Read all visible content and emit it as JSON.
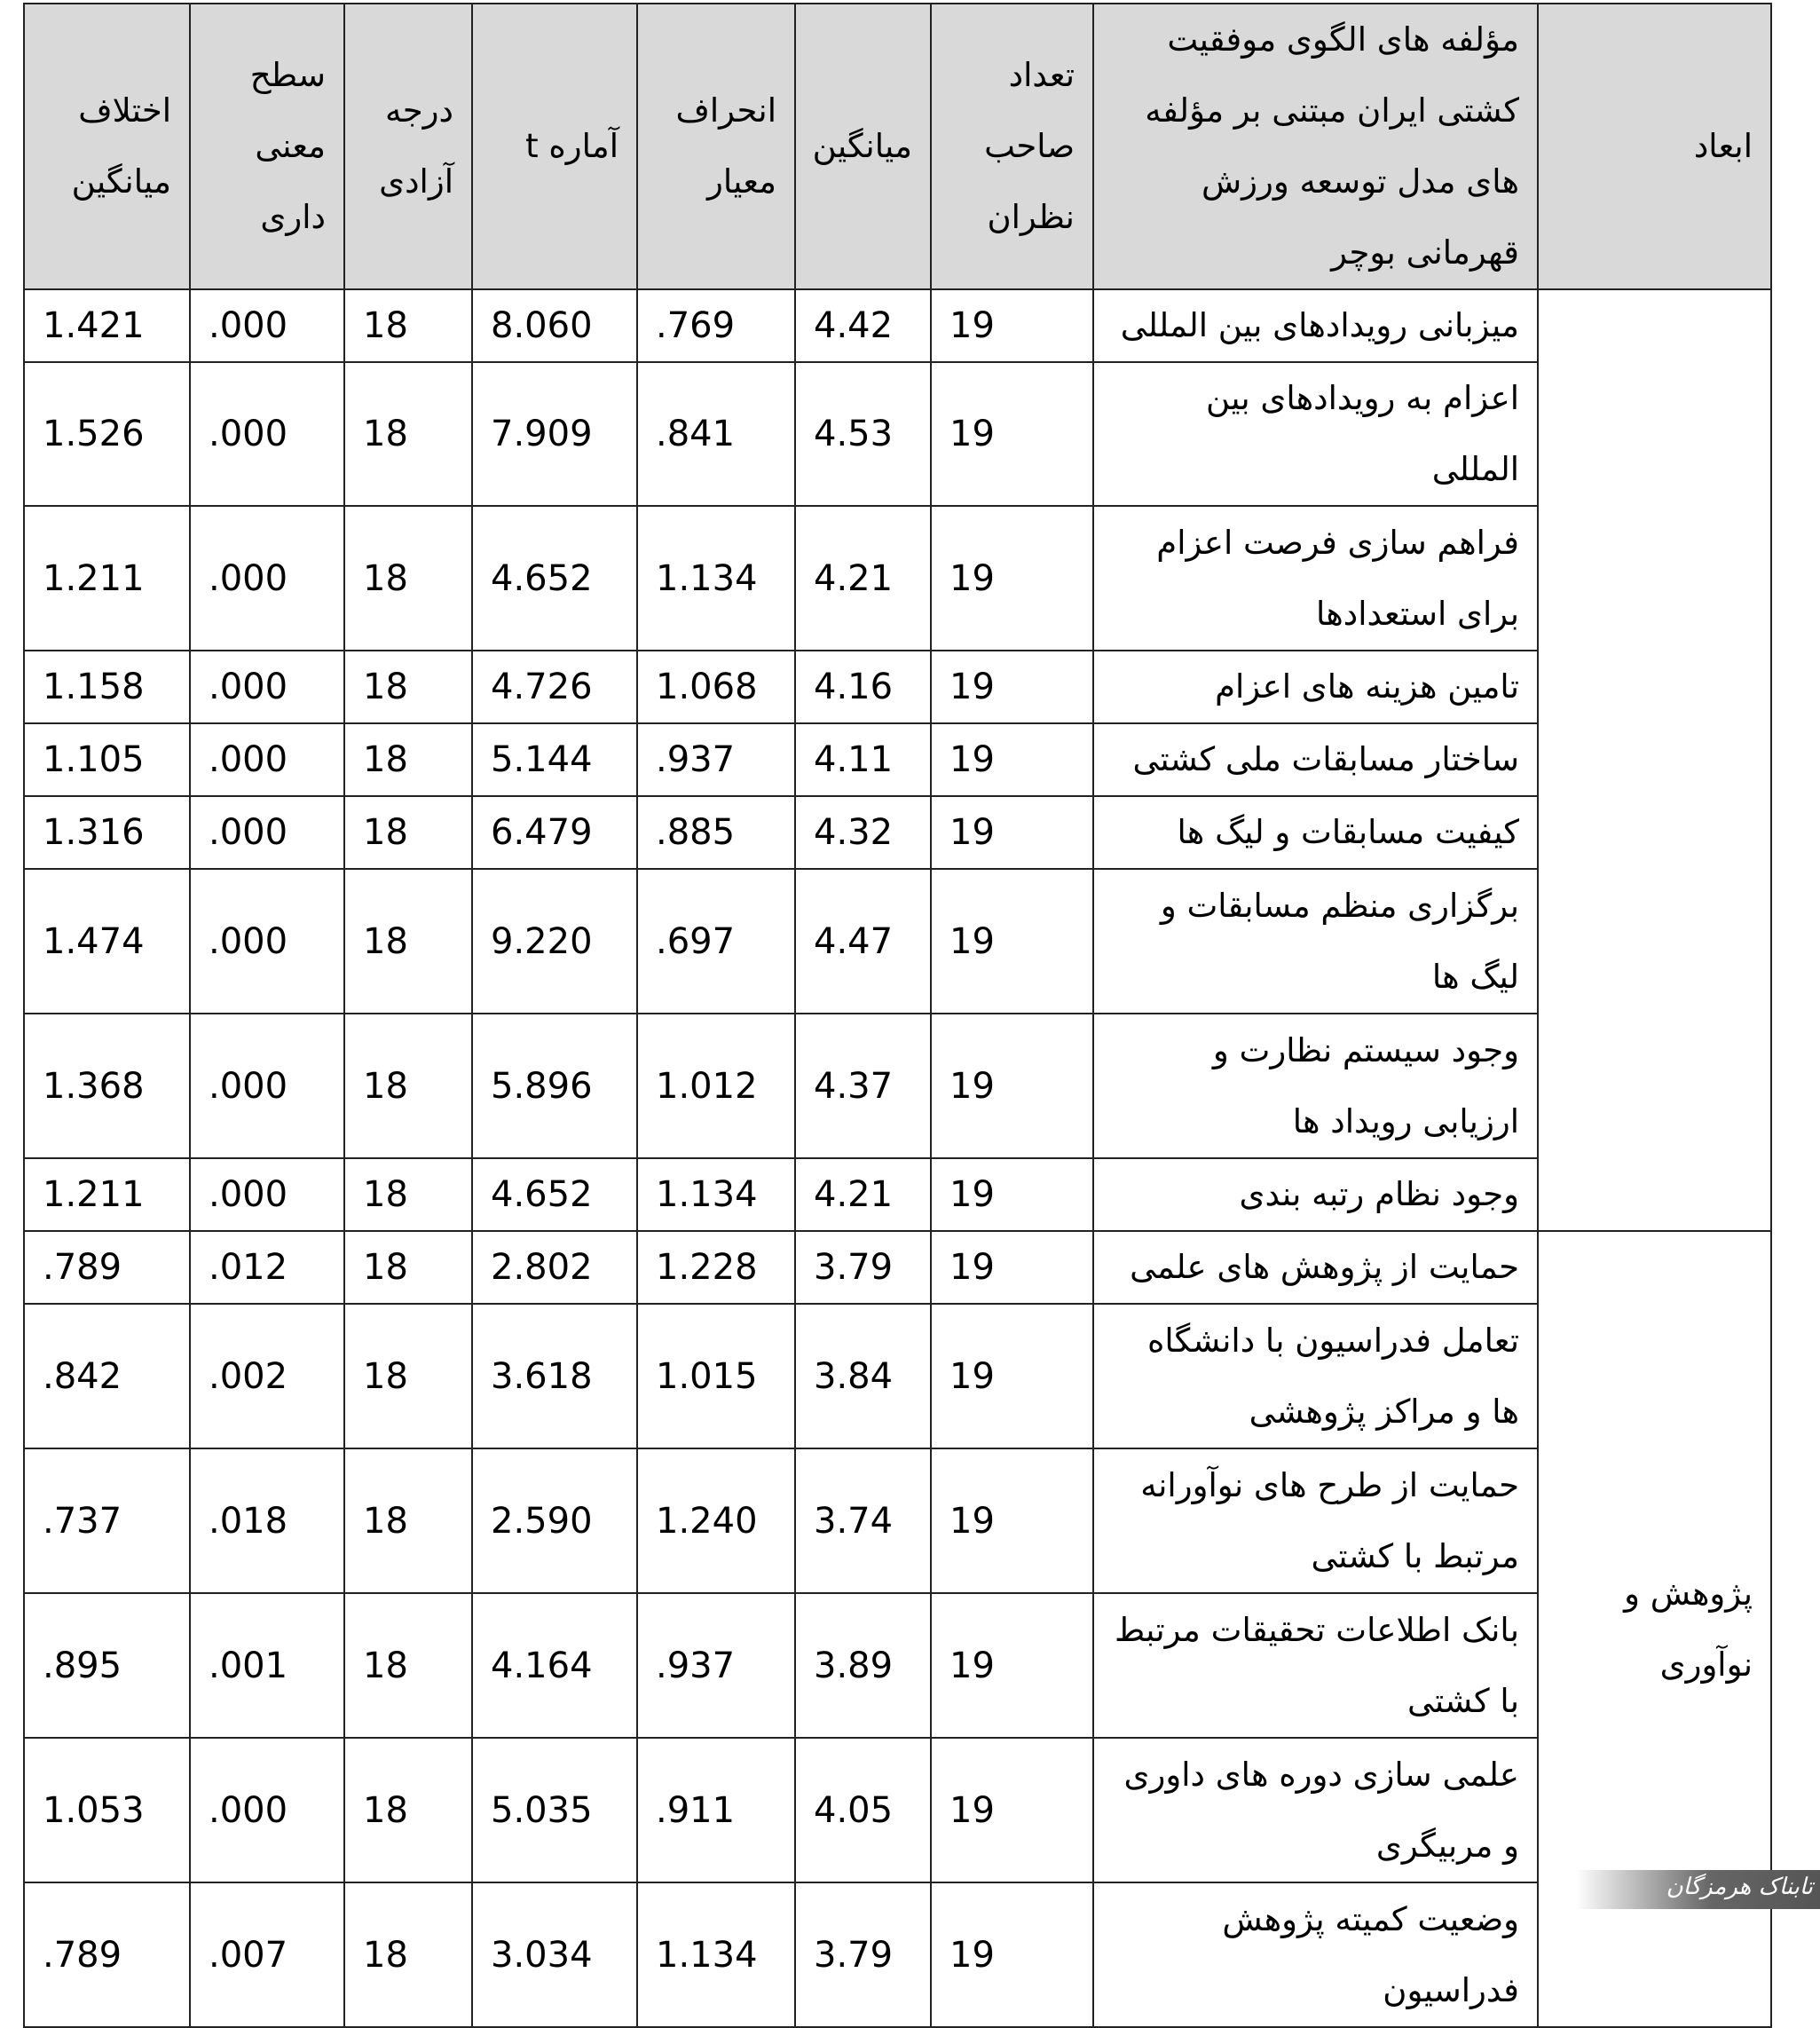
{
  "headers": [
    "ابعاد",
    "مؤلفه های الگوی موفقیت کشتی ایران مبتنی بر مؤلفه های مدل توسعه ورزش قهرمانی بوچر",
    "تعداد صاحب نظران",
    "میانگین",
    "انحراف معیار",
    "آماره t",
    "درجه آزادی",
    "سطح معنی داری",
    "اختلاف میانگین"
  ],
  "groups": [
    {
      "dimension": "",
      "rows": [
        [
          "میزبانی رویدادهای بین المللی",
          "19",
          "4.42",
          ".769",
          "8.060",
          "18",
          ".000",
          "1.421"
        ],
        [
          "اعزام به رویدادهای بین المللی",
          "19",
          "4.53",
          ".841",
          "7.909",
          "18",
          ".000",
          "1.526"
        ],
        [
          "فراهم سازی فرصت اعزام برای استعدادها",
          "19",
          "4.21",
          "1.134",
          "4.652",
          "18",
          ".000",
          "1.211"
        ],
        [
          "تامین هزینه های اعزام",
          "19",
          "4.16",
          "1.068",
          "4.726",
          "18",
          ".000",
          "1.158"
        ],
        [
          "ساختار مسابقات ملی کشتی",
          "19",
          "4.11",
          ".937",
          "5.144",
          "18",
          ".000",
          "1.105"
        ],
        [
          "کیفیت مسابقات و لیگ ها",
          "19",
          "4.32",
          ".885",
          "6.479",
          "18",
          ".000",
          "1.316"
        ],
        [
          "برگزاری منظم مسابقات و لیگ ها",
          "19",
          "4.47",
          ".697",
          "9.220",
          "18",
          ".000",
          "1.474"
        ],
        [
          "وجود سیستم نظارت و ارزیابی رویداد ها",
          "19",
          "4.37",
          "1.012",
          "5.896",
          "18",
          ".000",
          "1.368"
        ],
        [
          "وجود نظام رتبه بندی",
          "19",
          "4.21",
          "1.134",
          "4.652",
          "18",
          ".000",
          "1.211"
        ]
      ]
    },
    {
      "dimension": "پژوهش و نوآوری",
      "rows": [
        [
          "حمایت از پژوهش های علمی",
          "19",
          "3.79",
          "1.228",
          "2.802",
          "18",
          ".012",
          ".789"
        ],
        [
          "تعامل فدراسیون با دانشگاه ها و مراکز پژوهشی",
          "19",
          "3.84",
          "1.015",
          "3.618",
          "18",
          ".002",
          ".842"
        ],
        [
          "حمایت از طرح های نوآورانه مرتبط با کشتی",
          "19",
          "3.74",
          "1.240",
          "2.590",
          "18",
          ".018",
          ".737"
        ],
        [
          "بانک اطلاعات تحقیقات مرتبط با کشتی",
          "19",
          "3.89",
          ".937",
          "4.164",
          "18",
          ".001",
          ".895"
        ],
        [
          "علمی سازی دوره های داوری و مربیگری",
          "19",
          "4.05",
          ".911",
          "5.035",
          "18",
          ".000",
          "1.053"
        ],
        [
          "وضعیت کمیته پژوهش فدراسیون",
          "19",
          "3.79",
          "1.134",
          "3.034",
          "18",
          ".007",
          ".789"
        ]
      ]
    }
  ],
  "watermark": "تابناک هرمزگان"
}
